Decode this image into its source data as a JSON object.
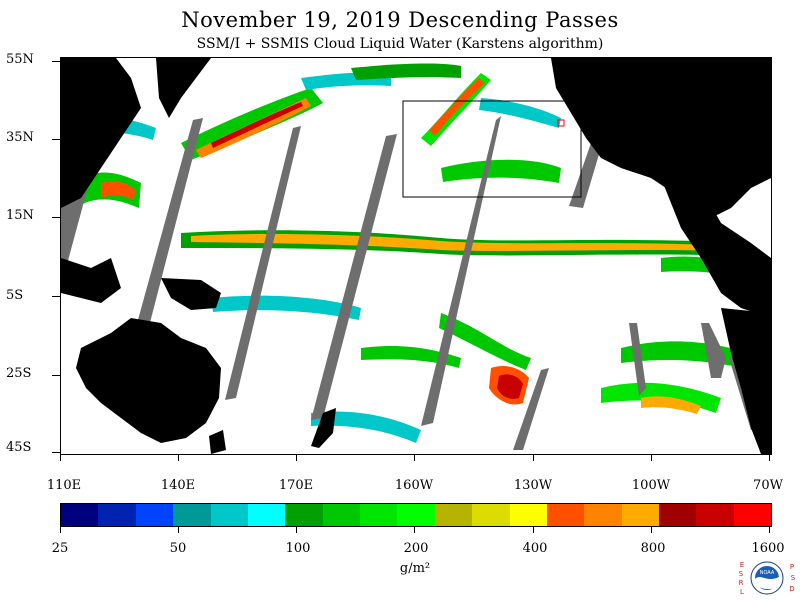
{
  "header": {
    "title": "November 19, 2019  Descending Passes",
    "subtitle": "SSM/I + SSMIS Cloud Liquid Water (Karstens algorithm)"
  },
  "map": {
    "lat_labels": [
      "55N",
      "35N",
      "15N",
      "5S",
      "25S",
      "45S"
    ],
    "lon_labels": [
      "110E",
      "140E",
      "170E",
      "160W",
      "130W",
      "100W",
      "70W"
    ],
    "lat_range": [
      -45,
      55
    ],
    "lon_range_east": [
      110,
      290
    ],
    "land_color": "#000000",
    "no_data_color": "#6e6e6e",
    "clear_color": "#ffffff",
    "annotations": [
      "box-outline-north-pacific"
    ]
  },
  "colorbar": {
    "labels": [
      "25",
      "50",
      "100",
      "200",
      "400",
      "800",
      "1600"
    ],
    "units": "g/m²",
    "colors": [
      "#00007f",
      "#0022b0",
      "#0044ff",
      "#009999",
      "#00c8c8",
      "#00ffff",
      "#00a000",
      "#00c800",
      "#00e600",
      "#00ff00",
      "#b4b400",
      "#dcdc00",
      "#ffff00",
      "#ff5000",
      "#ff8200",
      "#ffaa00",
      "#a00000",
      "#c80000",
      "#ff0000"
    ]
  },
  "logo": {
    "left_letters": "ESRL",
    "right_letters": "PSD",
    "center_text": "NOAA"
  }
}
